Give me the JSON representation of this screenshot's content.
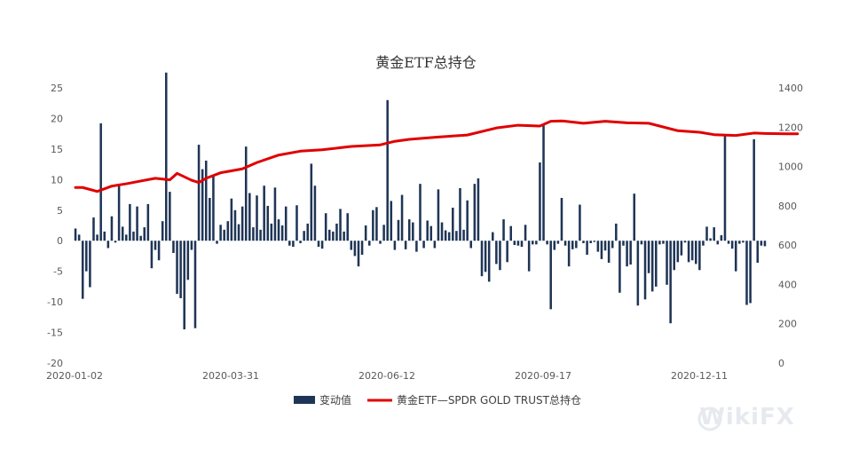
{
  "chart_data": {
    "type": "bar+line",
    "title": "黄金ETF总持仓",
    "x_tick_labels": [
      "2020-01-02",
      "2020-03-31",
      "2020-06-12",
      "2020-09-17",
      "2020-12-11"
    ],
    "y_left": {
      "ticks": [
        "25",
        "20",
        "15",
        "10",
        "5",
        "0",
        "-5",
        "-10",
        "-15",
        "-20"
      ],
      "range": [
        -20,
        25
      ]
    },
    "y_right": {
      "ticks": [
        "1400",
        "1200",
        "1000",
        "800",
        "600",
        "400",
        "200",
        "0"
      ],
      "range": [
        0,
        1400
      ]
    },
    "legend": {
      "placement": "bottom",
      "items": [
        "变动值",
        "黄金ETF—SPDR GOLD TRUST总持仓"
      ]
    },
    "series": [
      {
        "name": "变动值",
        "kind": "bar",
        "color": "#1f3556",
        "values": [
          2,
          1,
          -9.5,
          -5,
          -7.6,
          3.8,
          1,
          19.2,
          1.5,
          -1.2,
          4,
          -0.3,
          9,
          2.3,
          1,
          6,
          1.5,
          5.6,
          0.8,
          2.2,
          6,
          -4.5,
          -1.5,
          -3.2,
          3.2,
          27.5,
          8,
          -2,
          -8.7,
          -9.4,
          -14.5,
          -6.4,
          -1.5,
          -14.3,
          15.7,
          11.7,
          13.1,
          7,
          10.6,
          -0.5,
          2.6,
          1.8,
          3.2,
          6.9,
          5,
          2.7,
          5.6,
          15.4,
          7.8,
          2.2,
          7.4,
          1.8,
          9,
          5.7,
          2.8,
          8.7,
          3.5,
          2.5,
          5.6,
          -0.8,
          -1,
          5.8,
          -0.4,
          1.6,
          2.8,
          12.6,
          9,
          -1,
          -1.3,
          4.5,
          1.8,
          1.5,
          2.8,
          5.2,
          1.5,
          4.5,
          -1.5,
          -2.5,
          -4.2,
          -2.3,
          2.5,
          -0.8,
          5,
          5.5,
          -0.5,
          2.6,
          23,
          6.5,
          -1.5,
          3.4,
          7.5,
          -1.4,
          3.5,
          3,
          -1.8,
          9.3,
          -1.2,
          3.3,
          2.4,
          -1.2,
          8.4,
          3,
          1.7,
          1.4,
          5.4,
          1.6,
          8.6,
          1.8,
          6.6,
          -1.2,
          9.3,
          10.2,
          -5.8,
          -5.1,
          -6.7,
          1.4,
          -3.8,
          -4.8,
          3.5,
          -3.5,
          2.4,
          -0.7,
          -0.8,
          -1,
          2.6,
          -5,
          -0.6,
          -0.6,
          12.8,
          18.9,
          -0.6,
          -11.2,
          -1.5,
          -0.5,
          7,
          -0.8,
          -4.2,
          -1.4,
          -1.2,
          5.9,
          -0.4,
          -2.3,
          -0.4,
          -0.2,
          -1.8,
          -3,
          -1.6,
          -3.6,
          -1.2,
          2.8,
          -8.5,
          -0.8,
          -4.2,
          -3.9,
          7.7,
          -10.6,
          -0.6,
          -9.6,
          -5.3,
          -8.3,
          -7.5,
          -0.6,
          -0.5,
          -7.2,
          -13.5,
          -4.8,
          -3.5,
          -2.4,
          -0.3,
          -3.5,
          -3.2,
          -3.8,
          -4.8,
          -0.8,
          2.3,
          0.4,
          2.2,
          -0.6,
          0.9,
          17.2,
          -0.5,
          -1.3,
          -5,
          -0.5,
          -0.3,
          -10.5,
          -10.2,
          16.6,
          -3.6,
          -0.8,
          -0.9
        ]
      },
      {
        "name": "黄金ETF—SPDR GOLD TRUST总持仓",
        "kind": "line",
        "color": "#e00000",
        "x_index": [
          0,
          2,
          6,
          10,
          14,
          18,
          22,
          26,
          28,
          32,
          34,
          36,
          40,
          46,
          50,
          56,
          62,
          68,
          76,
          84,
          88,
          92,
          100,
          108,
          116,
          122,
          128,
          131,
          134,
          140,
          146,
          152,
          158,
          166,
          172,
          176,
          182,
          187,
          190,
          196,
          199
        ],
        "values": [
          893,
          893,
          873,
          900,
          912,
          926,
          940,
          932,
          965,
          930,
          918,
          940,
          968,
          988,
          1020,
          1058,
          1078,
          1085,
          1102,
          1110,
          1128,
          1138,
          1150,
          1160,
          1196,
          1210,
          1206,
          1230,
          1232,
          1220,
          1230,
          1222,
          1220,
          1182,
          1174,
          1162,
          1158,
          1170,
          1168,
          1166,
          1166
        ]
      }
    ]
  }
}
